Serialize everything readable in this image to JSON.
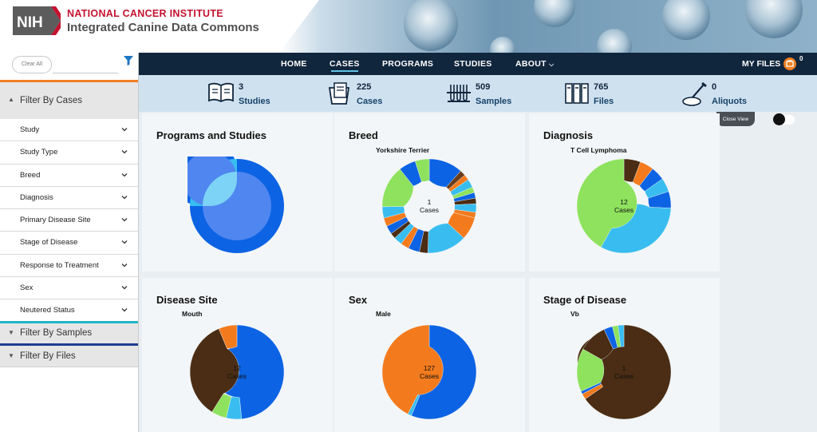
{
  "header": {
    "logo_text": "NIH",
    "institute": "NATIONAL CANCER INSTITUTE",
    "title": "Integrated Canine Data Commons"
  },
  "sidebar": {
    "clear_all": "Clear All",
    "section_cases": "Filter By Cases",
    "filters": [
      "Study",
      "Study Type",
      "Breed",
      "Diagnosis",
      "Primary Disease Site",
      "Stage of Disease",
      "Response to Treatment",
      "Sex",
      "Neutered Status"
    ],
    "section_samples": "Filter By Samples",
    "section_files": "Filter By Files",
    "colors": {
      "cases": "#f07f21",
      "samples": "#20b4c8",
      "files": "#1f3c8f"
    }
  },
  "nav": {
    "items": [
      "HOME",
      "CASES",
      "PROGRAMS",
      "STUDIES",
      "ABOUT"
    ],
    "active": "CASES",
    "my_files": "MY FILES",
    "cart_count": "0"
  },
  "stats": [
    {
      "value": "3",
      "label": "Studies",
      "icon": "book-icon"
    },
    {
      "value": "225",
      "label": "Cases",
      "icon": "case-file-icon"
    },
    {
      "value": "509",
      "label": "Samples",
      "icon": "test-tubes-icon"
    },
    {
      "value": "765",
      "label": "Files",
      "icon": "binders-icon"
    },
    {
      "value": "0",
      "label": "Aliquots",
      "icon": "pipette-dish-icon"
    }
  ],
  "close_view": "Close View",
  "cards": [
    {
      "title": "Programs and Studies",
      "subtitle": "",
      "center_value": "",
      "center_label": ""
    },
    {
      "title": "Breed",
      "subtitle": "Yorkshire Terrier",
      "center_value": "1",
      "center_label": "Cases"
    },
    {
      "title": "Diagnosis",
      "subtitle": "T Cell Lymphoma",
      "center_value": "12",
      "center_label": "Cases"
    },
    {
      "title": "Disease Site",
      "subtitle": "Mouth",
      "center_value": "12",
      "center_label": "Cases"
    },
    {
      "title": "Sex",
      "subtitle": "Male",
      "center_value": "127",
      "center_label": "Cases"
    },
    {
      "title": "Stage of Disease",
      "subtitle": "Vb",
      "center_value": "1",
      "center_label": "Cases"
    }
  ],
  "chart_data": [
    {
      "type": "pie",
      "title": "Programs and Studies",
      "slices": [
        {
          "value": 3,
          "color": "#0c63e4"
        },
        {
          "value": 1,
          "color": "#39bdf0"
        }
      ]
    },
    {
      "type": "pie",
      "title": "Breed",
      "subtitle": "Yorkshire Terrier",
      "slices": [
        {
          "value": 12,
          "color": "#0c63e4"
        },
        {
          "value": 2,
          "color": "#6b3d1a"
        },
        {
          "value": 2,
          "color": "#f37b1d"
        },
        {
          "value": 3,
          "color": "#39bdf0"
        },
        {
          "value": 2,
          "color": "#8ee25d"
        },
        {
          "value": 2,
          "color": "#0c63e4"
        },
        {
          "value": 2,
          "color": "#4a2d14"
        },
        {
          "value": 3,
          "color": "#39bdf0"
        },
        {
          "value": 2,
          "color": "#f37b1d"
        },
        {
          "value": 8,
          "color": "#f37b1d"
        },
        {
          "value": 14,
          "color": "#39bdf0"
        },
        {
          "value": 3,
          "color": "#4a2d14"
        },
        {
          "value": 4,
          "color": "#0c63e4"
        },
        {
          "value": 3,
          "color": "#f37b1d"
        },
        {
          "value": 3,
          "color": "#39bdf0"
        },
        {
          "value": 2,
          "color": "#4a2d14"
        },
        {
          "value": 3,
          "color": "#0c63e4"
        },
        {
          "value": 3,
          "color": "#f37b1d"
        },
        {
          "value": 4,
          "color": "#39bdf0"
        },
        {
          "value": 15,
          "color": "#8ee25d"
        },
        {
          "value": 6,
          "color": "#0c63e4"
        },
        {
          "value": 5,
          "color": "#8ee25d"
        }
      ]
    },
    {
      "type": "pie",
      "title": "Diagnosis",
      "subtitle": "T Cell Lymphoma",
      "slices": [
        {
          "value": 6,
          "color": "#4a2d14"
        },
        {
          "value": 5,
          "color": "#f37b1d"
        },
        {
          "value": 5,
          "color": "#0c63e4"
        },
        {
          "value": 5,
          "color": "#39bdf0"
        },
        {
          "value": 6,
          "color": "#0c63e4"
        },
        {
          "value": 34,
          "color": "#39bdf0"
        },
        {
          "value": 44,
          "color": "#8ee25d"
        }
      ]
    },
    {
      "type": "pie",
      "title": "Disease Site",
      "subtitle": "Mouth",
      "slices": [
        {
          "value": 46,
          "color": "#0c63e4"
        },
        {
          "value": 5,
          "color": "#39bdf0"
        },
        {
          "value": 5,
          "color": "#8ee25d"
        },
        {
          "value": 33,
          "color": "#4a2d14"
        },
        {
          "value": 6,
          "color": "#f37b1d"
        }
      ]
    },
    {
      "type": "pie",
      "title": "Sex",
      "subtitle": "Male",
      "slices": [
        {
          "value": 127,
          "color": "#0c63e4"
        },
        {
          "value": 3,
          "color": "#39bdf0"
        },
        {
          "value": 96,
          "color": "#f37b1d"
        }
      ]
    },
    {
      "type": "pie",
      "title": "Stage of Disease",
      "subtitle": "Vb",
      "slices": [
        {
          "value": 66,
          "color": "#4a2d14"
        },
        {
          "value": 2,
          "color": "#f37b1d"
        },
        {
          "value": 1,
          "color": "#0c63e4"
        },
        {
          "value": 15,
          "color": "#8ee25d"
        },
        {
          "value": 10,
          "color": "#4a2d14"
        },
        {
          "value": 3,
          "color": "#0c63e4"
        },
        {
          "value": 2,
          "color": "#8ee25d"
        },
        {
          "value": 2,
          "color": "#39bdf0"
        }
      ]
    }
  ]
}
